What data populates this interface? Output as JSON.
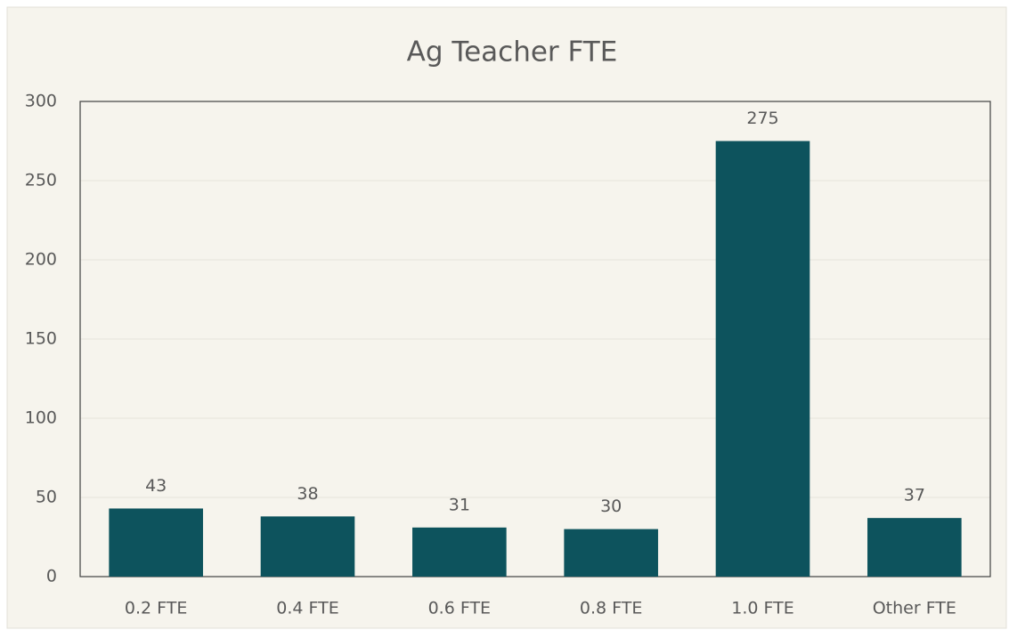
{
  "chart_data": {
    "type": "bar",
    "title": "Ag Teacher FTE",
    "categories": [
      "0.2 FTE",
      "0.4 FTE",
      "0.6 FTE",
      "0.8 FTE",
      "1.0 FTE",
      "Other FTE"
    ],
    "values": [
      43,
      38,
      31,
      30,
      275,
      37
    ],
    "color": "#0d535d",
    "ylim": [
      0,
      300
    ],
    "yticks": [
      0,
      50,
      100,
      150,
      200,
      250,
      300
    ],
    "grid": true,
    "data_labels": true
  }
}
